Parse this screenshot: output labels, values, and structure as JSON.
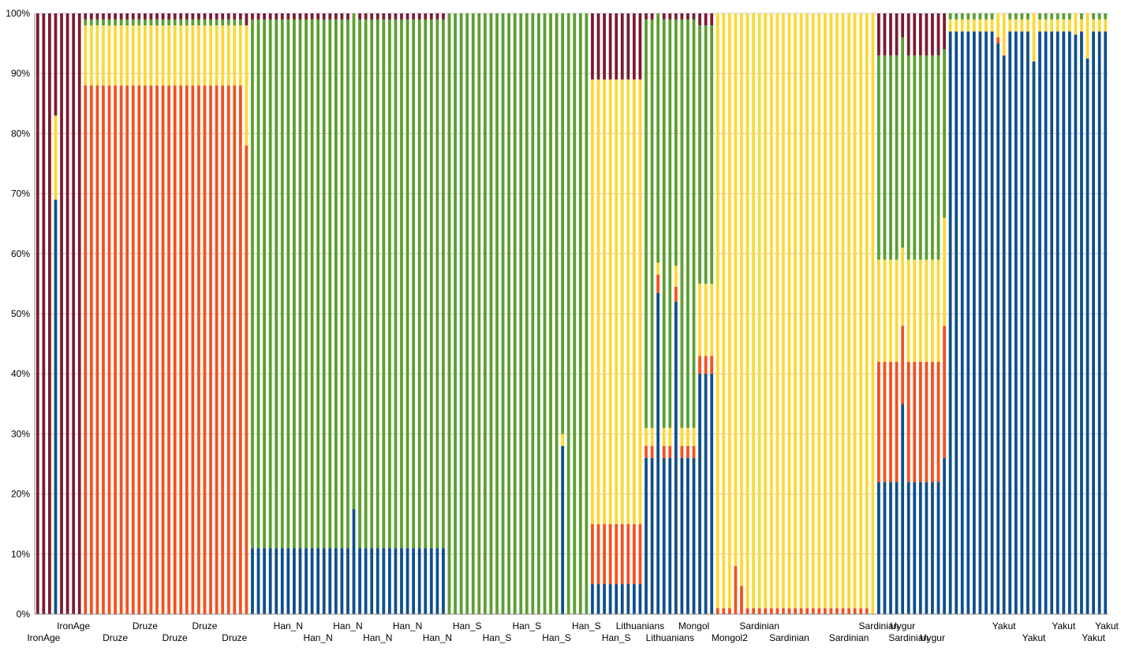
{
  "colors": {
    "c1": "#7a1c32",
    "c2": "#f4511e",
    "c3": "#fdd835",
    "c4": "#5c9e2f",
    "c5": "#0f4f8a",
    "grid": "#c8c8c8",
    "axis": "#8c8c8c"
  },
  "chart_data": {
    "type": "bar",
    "stacked": "percent",
    "ylim": [
      0,
      100
    ],
    "yticks": [
      "0%",
      "10%",
      "20%",
      "30%",
      "40%",
      "50%",
      "60%",
      "70%",
      "80%",
      "90%",
      "100%"
    ],
    "grid": true,
    "bar_count": 180,
    "component_order_bottom_to_top": [
      "c5",
      "c2",
      "c3",
      "c4",
      "c1"
    ],
    "segments": [
      {
        "start": 0,
        "end": 2,
        "comp": {
          "c1": 100
        }
      },
      {
        "start": 3,
        "end": 3,
        "comp": {
          "c5": 69,
          "c3": 14,
          "c1": 17
        }
      },
      {
        "start": 4,
        "end": 7,
        "comp": {
          "c1": 100
        }
      },
      {
        "start": 8,
        "end": 34,
        "comp": {
          "c2": 88,
          "c3": 10,
          "c4": 1,
          "c1": 1
        }
      },
      {
        "start": 35,
        "end": 35,
        "comp": {
          "c2": 78,
          "c3": 20,
          "c1": 2
        }
      },
      {
        "start": 36,
        "end": 68,
        "comp": {
          "c5": 11,
          "c4": 88,
          "c1": 1
        }
      },
      {
        "start": 69,
        "end": 92,
        "comp": {
          "c4": 100
        }
      },
      {
        "start": 93,
        "end": 101,
        "comp": {
          "c5": 5,
          "c2": 10,
          "c3": 74,
          "c1": 11
        }
      },
      {
        "start": 102,
        "end": 110,
        "comp": {
          "c5": 26,
          "c2": 2,
          "c3": 3,
          "c4": 68,
          "c1": 1
        }
      },
      {
        "start": 111,
        "end": 113,
        "comp": {
          "c5": 40,
          "c2": 3,
          "c3": 12,
          "c4": 43,
          "c1": 2
        }
      },
      {
        "start": 114,
        "end": 140,
        "comp": {
          "c2": 1,
          "c3": 99
        }
      },
      {
        "start": 141,
        "end": 152,
        "comp": {
          "c5": 22,
          "c2": 20,
          "c3": 17,
          "c4": 34,
          "c1": 7
        }
      },
      {
        "start": 153,
        "end": 179,
        "comp": {
          "c5": 97,
          "c3": 2,
          "c4": 1
        }
      }
    ],
    "bar_overrides": {
      "3": {
        "c5": 69,
        "c3": 14,
        "c1": 17
      },
      "53": {
        "c5": 17.5,
        "c4": 82.5
      },
      "88": {
        "c5": 28,
        "c3": 2,
        "c4": 70
      },
      "104": {
        "c5": 53.5,
        "c2": 3,
        "c3": 2,
        "c4": 41.5
      },
      "107": {
        "c5": 52,
        "c2": 2.5,
        "c3": 3.5,
        "c4": 41,
        "c1": 1
      },
      "117": {
        "c2": 8,
        "c3": 92
      },
      "118": {
        "c2": 4.7,
        "c3": 95.3
      },
      "140": {
        "c5": 0,
        "c3": 100
      },
      "145": {
        "c5": 35,
        "c2": 13,
        "c3": 13,
        "c4": 35,
        "c1": 4
      },
      "152": {
        "c5": 26,
        "c2": 22,
        "c3": 18,
        "c4": 28,
        "c1": 6
      },
      "161": {
        "c5": 95,
        "c2": 1,
        "c3": 4
      },
      "162": {
        "c5": 93,
        "c3": 7
      },
      "167": {
        "c5": 92,
        "c3": 8
      },
      "174": {
        "c5": 96.5,
        "c3": 3.5
      },
      "176": {
        "c5": 92.5,
        "c3": 7.5
      }
    },
    "xlabels_top": [
      {
        "text": "IronAge",
        "bar": 6
      },
      {
        "text": "Druze",
        "bar": 18
      },
      {
        "text": "Druze",
        "bar": 28
      },
      {
        "text": "Han_N",
        "bar": 42
      },
      {
        "text": "Han_N",
        "bar": 52
      },
      {
        "text": "Han_N",
        "bar": 62
      },
      {
        "text": "Han_S",
        "bar": 72
      },
      {
        "text": "Han_S",
        "bar": 82
      },
      {
        "text": "Han_S",
        "bar": 92
      },
      {
        "text": "Lithuanians",
        "bar": 101
      },
      {
        "text": "Mongol",
        "bar": 110
      },
      {
        "text": "Sardinian",
        "bar": 121
      },
      {
        "text": "Sardinian",
        "bar": 141
      },
      {
        "text": "Uygur",
        "bar": 145
      },
      {
        "text": "Yakut",
        "bar": 162
      },
      {
        "text": "Yakut",
        "bar": 172
      },
      {
        "text": "Yakut",
        "bar": 182
      }
    ],
    "xlabels_bottom": [
      {
        "text": "IronAge",
        "bar": 1
      },
      {
        "text": "Druze",
        "bar": 13
      },
      {
        "text": "Druze",
        "bar": 23
      },
      {
        "text": "Druze",
        "bar": 33
      },
      {
        "text": "Han_N",
        "bar": 47
      },
      {
        "text": "Han_N",
        "bar": 57
      },
      {
        "text": "Han_N",
        "bar": 67
      },
      {
        "text": "Han_S",
        "bar": 77
      },
      {
        "text": "Han_S",
        "bar": 87
      },
      {
        "text": "Han_S",
        "bar": 97
      },
      {
        "text": "Lithuanians",
        "bar": 106
      },
      {
        "text": "Mongol2",
        "bar": 116
      },
      {
        "text": "Sardinian",
        "bar": 126
      },
      {
        "text": "Sardinian",
        "bar": 136
      },
      {
        "text": "Sardinian",
        "bar": 146
      },
      {
        "text": "Uygur",
        "bar": 150
      },
      {
        "text": "Yakut",
        "bar": 167
      },
      {
        "text": "Yakut",
        "bar": 177
      }
    ]
  }
}
